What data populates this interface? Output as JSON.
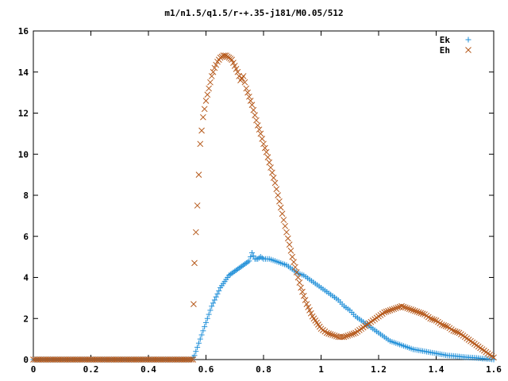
{
  "chart_data": {
    "type": "scatter",
    "title": "m1/n1.5/q1.5/r-+.35-j181/M0.05/512",
    "xlabel": "",
    "ylabel": "",
    "xlim": [
      0,
      1.6
    ],
    "ylim": [
      0,
      16
    ],
    "x_ticks": [
      "0",
      "0.2",
      "0.4",
      "0.6",
      "0.8",
      "1",
      "1.2",
      "1.4",
      "1.6"
    ],
    "y_ticks": [
      "0",
      "2",
      "4",
      "6",
      "8",
      "10",
      "12",
      "14",
      "16"
    ],
    "grid": false,
    "legend_position": "top-right",
    "series": [
      {
        "name": "Ek",
        "marker": "plus",
        "color": "#1f8fd8",
        "points": [
          [
            0.0,
            0.0
          ],
          [
            0.05,
            0.0
          ],
          [
            0.1,
            0.0
          ],
          [
            0.15,
            0.0
          ],
          [
            0.2,
            0.0
          ],
          [
            0.25,
            0.0
          ],
          [
            0.3,
            0.0
          ],
          [
            0.35,
            0.0
          ],
          [
            0.4,
            0.0
          ],
          [
            0.45,
            0.0
          ],
          [
            0.5,
            0.0
          ],
          [
            0.55,
            0.0
          ],
          [
            0.56,
            0.2
          ],
          [
            0.57,
            0.6
          ],
          [
            0.58,
            1.0
          ],
          [
            0.59,
            1.4
          ],
          [
            0.6,
            1.8
          ],
          [
            0.61,
            2.2
          ],
          [
            0.62,
            2.6
          ],
          [
            0.63,
            2.9
          ],
          [
            0.64,
            3.2
          ],
          [
            0.65,
            3.5
          ],
          [
            0.66,
            3.7
          ],
          [
            0.67,
            3.9
          ],
          [
            0.68,
            4.1
          ],
          [
            0.69,
            4.2
          ],
          [
            0.7,
            4.3
          ],
          [
            0.71,
            4.4
          ],
          [
            0.72,
            4.5
          ],
          [
            0.73,
            4.6
          ],
          [
            0.74,
            4.7
          ],
          [
            0.75,
            4.8
          ],
          [
            0.76,
            5.2
          ],
          [
            0.77,
            4.9
          ],
          [
            0.78,
            4.9
          ],
          [
            0.79,
            5.0
          ],
          [
            0.8,
            4.9
          ],
          [
            0.82,
            4.9
          ],
          [
            0.84,
            4.8
          ],
          [
            0.86,
            4.7
          ],
          [
            0.88,
            4.6
          ],
          [
            0.9,
            4.4
          ],
          [
            0.92,
            4.2
          ],
          [
            0.94,
            4.1
          ],
          [
            0.96,
            3.9
          ],
          [
            0.98,
            3.7
          ],
          [
            1.0,
            3.5
          ],
          [
            1.02,
            3.3
          ],
          [
            1.04,
            3.1
          ],
          [
            1.06,
            2.9
          ],
          [
            1.08,
            2.6
          ],
          [
            1.1,
            2.4
          ],
          [
            1.12,
            2.1
          ],
          [
            1.14,
            1.9
          ],
          [
            1.16,
            1.7
          ],
          [
            1.18,
            1.5
          ],
          [
            1.2,
            1.3
          ],
          [
            1.22,
            1.1
          ],
          [
            1.24,
            0.9
          ],
          [
            1.26,
            0.8
          ],
          [
            1.28,
            0.7
          ],
          [
            1.3,
            0.6
          ],
          [
            1.32,
            0.5
          ],
          [
            1.34,
            0.45
          ],
          [
            1.36,
            0.4
          ],
          [
            1.38,
            0.35
          ],
          [
            1.4,
            0.3
          ],
          [
            1.42,
            0.25
          ],
          [
            1.44,
            0.2
          ],
          [
            1.46,
            0.18
          ],
          [
            1.48,
            0.15
          ],
          [
            1.5,
            0.12
          ],
          [
            1.52,
            0.1
          ],
          [
            1.54,
            0.08
          ],
          [
            1.56,
            0.05
          ],
          [
            1.58,
            0.03
          ],
          [
            1.6,
            0.0
          ]
        ]
      },
      {
        "name": "Eh",
        "marker": "cross",
        "color": "#b5581a",
        "points": [
          [
            0.0,
            0.0
          ],
          [
            0.05,
            0.0
          ],
          [
            0.1,
            0.0
          ],
          [
            0.15,
            0.0
          ],
          [
            0.2,
            0.0
          ],
          [
            0.25,
            0.0
          ],
          [
            0.3,
            0.0
          ],
          [
            0.35,
            0.0
          ],
          [
            0.4,
            0.0
          ],
          [
            0.45,
            0.0
          ],
          [
            0.5,
            0.0
          ],
          [
            0.555,
            0.0
          ],
          [
            0.557,
            2.7
          ],
          [
            0.56,
            4.7
          ],
          [
            0.565,
            6.2
          ],
          [
            0.57,
            7.5
          ],
          [
            0.575,
            9.0
          ],
          [
            0.58,
            10.5
          ],
          [
            0.59,
            11.8
          ],
          [
            0.6,
            12.6
          ],
          [
            0.61,
            13.2
          ],
          [
            0.62,
            13.8
          ],
          [
            0.63,
            14.2
          ],
          [
            0.64,
            14.5
          ],
          [
            0.65,
            14.7
          ],
          [
            0.66,
            14.8
          ],
          [
            0.67,
            14.8
          ],
          [
            0.68,
            14.7
          ],
          [
            0.69,
            14.6
          ],
          [
            0.7,
            14.3
          ],
          [
            0.71,
            14.0
          ],
          [
            0.72,
            13.6
          ],
          [
            0.73,
            13.8
          ],
          [
            0.74,
            13.2
          ],
          [
            0.75,
            12.8
          ],
          [
            0.76,
            12.4
          ],
          [
            0.77,
            11.9
          ],
          [
            0.78,
            11.4
          ],
          [
            0.79,
            11.0
          ],
          [
            0.8,
            10.5
          ],
          [
            0.81,
            10.1
          ],
          [
            0.82,
            9.6
          ],
          [
            0.83,
            9.1
          ],
          [
            0.84,
            8.6
          ],
          [
            0.85,
            8.0
          ],
          [
            0.86,
            7.4
          ],
          [
            0.87,
            6.8
          ],
          [
            0.88,
            6.2
          ],
          [
            0.89,
            5.6
          ],
          [
            0.9,
            5.0
          ],
          [
            0.91,
            4.5
          ],
          [
            0.92,
            4.0
          ],
          [
            0.93,
            3.5
          ],
          [
            0.94,
            3.1
          ],
          [
            0.95,
            2.7
          ],
          [
            0.96,
            2.4
          ],
          [
            0.97,
            2.1
          ],
          [
            0.98,
            1.9
          ],
          [
            0.99,
            1.7
          ],
          [
            1.0,
            1.5
          ],
          [
            1.02,
            1.3
          ],
          [
            1.04,
            1.2
          ],
          [
            1.06,
            1.1
          ],
          [
            1.08,
            1.1
          ],
          [
            1.1,
            1.2
          ],
          [
            1.12,
            1.3
          ],
          [
            1.14,
            1.5
          ],
          [
            1.16,
            1.7
          ],
          [
            1.18,
            1.9
          ],
          [
            1.2,
            2.1
          ],
          [
            1.22,
            2.3
          ],
          [
            1.24,
            2.4
          ],
          [
            1.26,
            2.5
          ],
          [
            1.28,
            2.6
          ],
          [
            1.3,
            2.5
          ],
          [
            1.32,
            2.4
          ],
          [
            1.34,
            2.3
          ],
          [
            1.36,
            2.2
          ],
          [
            1.38,
            2.0
          ],
          [
            1.4,
            1.9
          ],
          [
            1.42,
            1.7
          ],
          [
            1.44,
            1.6
          ],
          [
            1.46,
            1.4
          ],
          [
            1.48,
            1.3
          ],
          [
            1.5,
            1.1
          ],
          [
            1.52,
            0.9
          ],
          [
            1.54,
            0.7
          ],
          [
            1.56,
            0.5
          ],
          [
            1.58,
            0.3
          ],
          [
            1.6,
            0.1
          ]
        ]
      }
    ]
  }
}
